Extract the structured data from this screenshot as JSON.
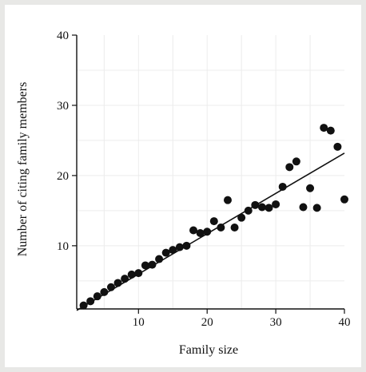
{
  "chart_data": {
    "type": "scatter",
    "title": "",
    "xlabel": "Family size",
    "ylabel": "Number of citing family members",
    "xlim": [
      1,
      40
    ],
    "ylim": [
      1,
      40
    ],
    "xticks": [
      10,
      20,
      30,
      40
    ],
    "yticks": [
      10,
      20,
      30,
      40
    ],
    "grid": true,
    "legend": "none",
    "colors": {
      "point": "#111111",
      "line": "#111111",
      "axis": "#111111",
      "grid": "#ececec"
    },
    "points": [
      {
        "x": 2,
        "y": 1.5
      },
      {
        "x": 3,
        "y": 2.1
      },
      {
        "x": 4,
        "y": 2.8
      },
      {
        "x": 5,
        "y": 3.4
      },
      {
        "x": 6,
        "y": 4.1
      },
      {
        "x": 7,
        "y": 4.7
      },
      {
        "x": 8,
        "y": 5.3
      },
      {
        "x": 9,
        "y": 5.9
      },
      {
        "x": 10,
        "y": 6.1
      },
      {
        "x": 11,
        "y": 7.2
      },
      {
        "x": 12,
        "y": 7.3
      },
      {
        "x": 13,
        "y": 8.1
      },
      {
        "x": 14,
        "y": 9.0
      },
      {
        "x": 15,
        "y": 9.4
      },
      {
        "x": 16,
        "y": 9.8
      },
      {
        "x": 17,
        "y": 10.0
      },
      {
        "x": 18,
        "y": 12.2
      },
      {
        "x": 19,
        "y": 11.8
      },
      {
        "x": 20,
        "y": 12.0
      },
      {
        "x": 21,
        "y": 13.5
      },
      {
        "x": 22,
        "y": 12.6
      },
      {
        "x": 23,
        "y": 16.5
      },
      {
        "x": 24,
        "y": 12.6
      },
      {
        "x": 25,
        "y": 14.0
      },
      {
        "x": 26,
        "y": 15.0
      },
      {
        "x": 27,
        "y": 15.8
      },
      {
        "x": 28,
        "y": 15.5
      },
      {
        "x": 29,
        "y": 15.4
      },
      {
        "x": 30,
        "y": 15.9
      },
      {
        "x": 31,
        "y": 18.4
      },
      {
        "x": 32,
        "y": 21.2
      },
      {
        "x": 33,
        "y": 22.0
      },
      {
        "x": 34,
        "y": 15.5
      },
      {
        "x": 35,
        "y": 18.2
      },
      {
        "x": 36,
        "y": 15.4
      },
      {
        "x": 37,
        "y": 26.8
      },
      {
        "x": 38,
        "y": 26.4
      },
      {
        "x": 39,
        "y": 24.1
      },
      {
        "x": 40,
        "y": 16.6
      }
    ],
    "fit_line": {
      "x": [
        1,
        40
      ],
      "y": [
        0.8,
        23.2
      ]
    }
  }
}
